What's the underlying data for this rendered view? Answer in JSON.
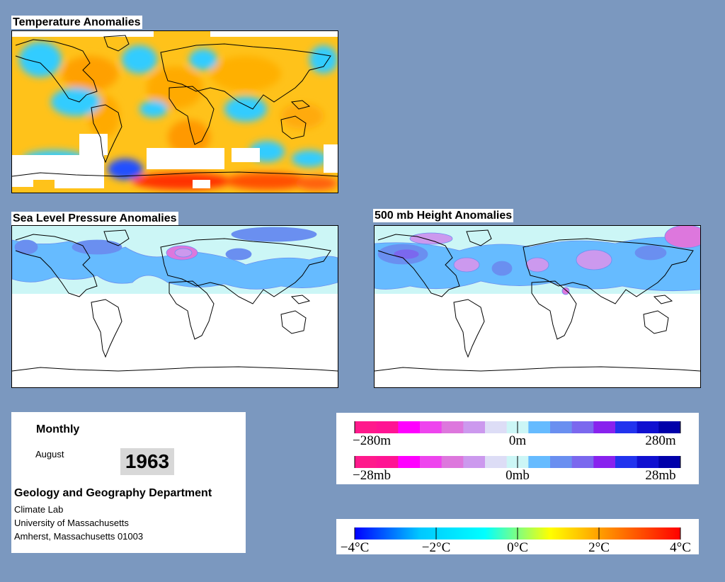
{
  "panels": {
    "temperature": {
      "title": "Temperature Anomalies"
    },
    "slp": {
      "title": "Sea Level Pressure Anomalies"
    },
    "height500": {
      "title": "500 mb Height Anomalies"
    }
  },
  "info": {
    "period": "Monthly",
    "month": "August",
    "year": "1963",
    "department": "Geology and Geography Department",
    "lab": "Climate Lab",
    "university": "University of Massachusetts",
    "address": "Amherst, Massachusetts 01003"
  },
  "legend_height": {
    "labels": [
      "−280m",
      "0m",
      "280m"
    ],
    "colors": [
      "#ff1a8c",
      "#ff1493",
      "#ff00ff",
      "#ee44ee",
      "#dd77dd",
      "#cc99ee",
      "#ddddf6",
      "#ccf6f6",
      "#66bbff",
      "#6a8ff0",
      "#7b68ee",
      "#8822ee",
      "#2233ee",
      "#1010d0",
      "#0000aa"
    ]
  },
  "legend_pressure": {
    "labels": [
      "−28mb",
      "0mb",
      "28mb"
    ],
    "colors": [
      "#ff1a8c",
      "#ff1493",
      "#ff00ff",
      "#ee44ee",
      "#dd77dd",
      "#cc99ee",
      "#ddddf6",
      "#ccf6f6",
      "#66bbff",
      "#6a8ff0",
      "#7b68ee",
      "#8822ee",
      "#2233ee",
      "#1010d0",
      "#0000aa"
    ]
  },
  "legend_temperature": {
    "labels": [
      "−4°C",
      "−2°C",
      "0°C",
      "2°C",
      "4°C"
    ],
    "stops": [
      "#0000ff",
      "#00c8ff",
      "#00ffff",
      "#ffff00",
      "#ff8000",
      "#ff0000"
    ]
  },
  "colors": {
    "background": "#7b98bf",
    "temp_warm": "#ffc21a",
    "temp_cool": "#33ccff",
    "slp_light": "#ccf6f6",
    "slp_medium": "#66bbff",
    "slp_strong": "#6a8ff0",
    "pink": "#dd77dd"
  }
}
